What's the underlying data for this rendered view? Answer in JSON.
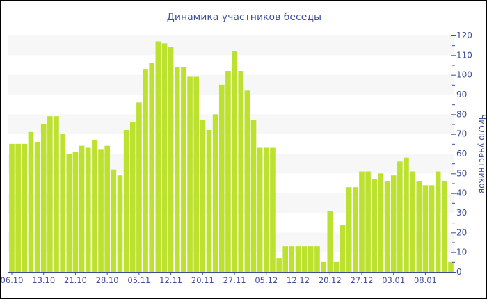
{
  "chart_data": {
    "type": "bar",
    "title": "Динамика участников беседы",
    "ylabel": "Число участников",
    "xlabel": "",
    "ylim": [
      0,
      120
    ],
    "yticks": [
      0,
      10,
      20,
      30,
      40,
      50,
      60,
      70,
      80,
      90,
      100,
      110,
      120
    ],
    "y_axis_side": "right",
    "grid": "alternating horizontal bands",
    "x_tick_labels": [
      "06.10",
      "13.10",
      "21.10",
      "28.10",
      "05.11",
      "12.11",
      "20.11",
      "27.11",
      "05.12",
      "12.12",
      "20.12",
      "27.12",
      "03.01",
      "08.01"
    ],
    "x_tick_every": 5,
    "values": [
      65,
      65,
      65,
      71,
      66,
      75,
      79,
      79,
      70,
      60,
      61,
      64,
      63,
      67,
      62,
      64,
      52,
      49,
      72,
      76,
      86,
      103,
      106,
      117,
      116,
      114,
      104,
      104,
      99,
      99,
      77,
      72,
      80,
      95,
      102,
      112,
      102,
      92,
      77,
      63,
      63,
      63,
      7,
      13,
      13,
      13,
      13,
      13,
      13,
      5,
      31,
      5,
      24,
      43,
      43,
      51,
      51,
      47,
      50,
      46,
      49,
      56,
      58,
      51,
      46,
      44,
      44,
      51,
      46,
      5
    ],
    "colors": {
      "bar": "#bde12f",
      "axis": "#3d4f99",
      "band": "#f7f7f7"
    }
  }
}
